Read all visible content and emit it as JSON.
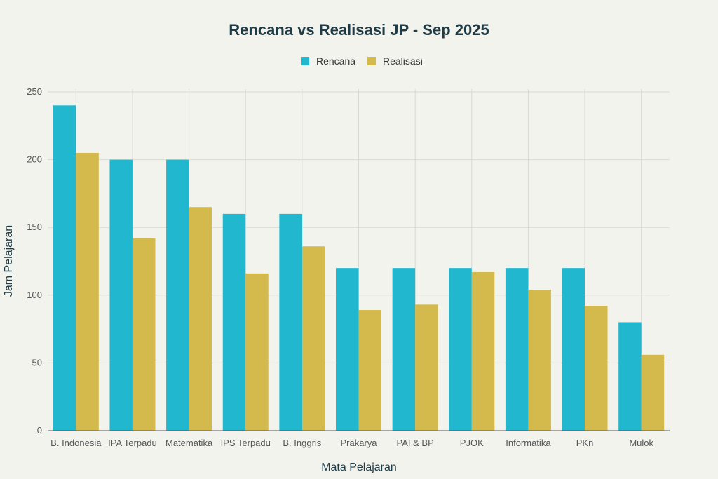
{
  "chart_data": {
    "type": "bar",
    "title": "Rencana vs Realisasi JP - Sep 2025",
    "xlabel": "Mata Pelajaran",
    "ylabel": "Jam Pelajaran",
    "ylim": [
      0,
      250
    ],
    "yticks": [
      0,
      50,
      100,
      150,
      200,
      250
    ],
    "grid": true,
    "legend_position": "top-center",
    "categories": [
      "B. Indonesia",
      "IPA Terpadu",
      "Matematika",
      "IPS Terpadu",
      "B. Inggris",
      "Prakarya",
      "PAI & BP",
      "PJOK",
      "Informatika",
      "PKn",
      "Mulok"
    ],
    "series": [
      {
        "name": "Rencana",
        "color": "#21b8cf",
        "values": [
          240,
          200,
          200,
          160,
          160,
          120,
          120,
          120,
          120,
          120,
          80
        ]
      },
      {
        "name": "Realisasi",
        "color": "#d4b94c",
        "values": [
          205,
          142,
          165,
          116,
          136,
          89,
          93,
          117,
          104,
          92,
          56
        ]
      }
    ]
  }
}
